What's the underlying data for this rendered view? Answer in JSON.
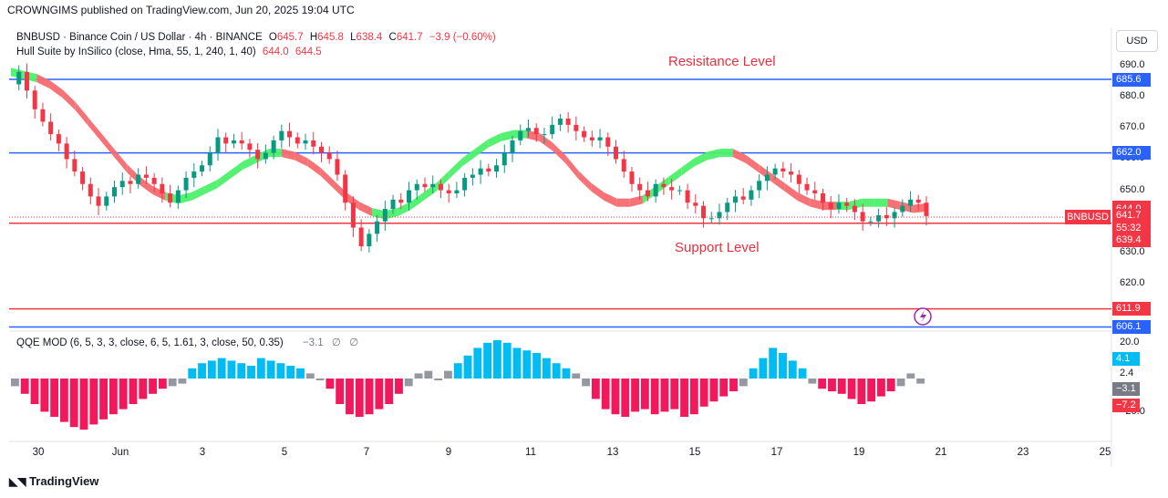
{
  "header": {
    "published": "CROWNGIMS published on TradingView.com, Jun 20, 2025 19:04 UTC"
  },
  "symbol": {
    "title": "BNBUSD · Binance Coin / US Dollar · 4h · BINANCE",
    "o_label": "O",
    "o": "645.7",
    "h_label": "H",
    "h": "645.8",
    "l_label": "L",
    "l": "638.4",
    "c_label": "C",
    "c": "641.7",
    "change": "−3.9 (−0.60%)"
  },
  "hull": {
    "label": "Hull Suite by InSilico (close, Hma, 55, 1, 240, 1, 40)",
    "v1": "644.0",
    "v2": "644.5"
  },
  "qqe": {
    "label": "QQE MOD (6, 5, 3, 3, close, 6, 5, 1.61, 3, close, 50, 0.35)",
    "v1": "−3.1",
    "v2": "∅",
    "v3": "∅"
  },
  "currency_button": "USD",
  "annotations": {
    "resistance": "Resisitance Level",
    "support": "Support Level"
  },
  "symbol_tag": "BNBUSD",
  "price_ticks": [
    "690.0",
    "680.0",
    "670.0",
    "660.0",
    "650.0",
    "640.0",
    "630.0",
    "620.0"
  ],
  "qqe_ticks": [
    "20.0",
    "2.4",
    "−20.0"
  ],
  "price_tags": [
    {
      "label": "685.6",
      "value": 685.6,
      "color": "#2962ff"
    },
    {
      "label": "662.0",
      "value": 662.0,
      "color": "#2962ff"
    },
    {
      "label": "644.5",
      "value": 644.5,
      "color": "#f23645"
    },
    {
      "label": "644.0",
      "value": 644.0,
      "color": "#f23645"
    },
    {
      "label": "641.7",
      "value": 641.7,
      "color": "#f23645"
    },
    {
      "label": "55:32",
      "value": 637.6,
      "color": "#f23645"
    },
    {
      "label": "639.4",
      "value": 634.0,
      "color": "#f23645"
    },
    {
      "label": "611.9",
      "value": 611.9,
      "color": "#f23645"
    },
    {
      "label": "606.1",
      "value": 606.1,
      "color": "#2962ff"
    }
  ],
  "qqe_tags": [
    {
      "label": "4.1",
      "value": 4.1,
      "color": "#00bcf2"
    },
    {
      "label": "−3.1",
      "value": -3.1,
      "color": "#787b86"
    },
    {
      "label": "−7.2",
      "value": -7.2,
      "color": "#f23645"
    }
  ],
  "x_labels": [
    "30",
    "Jun",
    "3",
    "5",
    "7",
    "9",
    "11",
    "13",
    "15",
    "17",
    "19",
    "21",
    "23",
    "25"
  ],
  "chart_data": {
    "type": "candlestick",
    "interval": "4h",
    "ylim": [
      603,
      695
    ],
    "horizontal_lines": [
      {
        "price": 685.6,
        "color": "#2962ff"
      },
      {
        "price": 662.0,
        "color": "#2962ff"
      },
      {
        "price": 639.4,
        "color": "#f23645"
      },
      {
        "price": 611.9,
        "color": "#f23645"
      },
      {
        "price": 606.1,
        "color": "#2962ff"
      }
    ],
    "close_path": [
      684,
      688,
      682,
      676,
      672,
      668,
      665,
      660,
      656,
      652,
      648,
      645,
      648,
      651,
      653,
      652,
      655,
      654,
      652,
      649,
      646,
      650,
      654,
      656,
      658,
      662,
      667,
      665,
      666,
      665,
      663,
      660,
      662,
      666,
      669,
      667,
      665,
      666,
      664,
      662,
      660,
      655,
      646,
      638,
      632,
      636,
      640,
      644,
      647,
      646,
      650,
      652,
      651,
      652,
      650,
      649,
      650,
      654,
      655,
      657,
      656,
      658,
      662,
      666,
      669,
      670,
      668,
      668,
      671,
      673,
      671,
      669,
      667,
      666,
      667,
      664,
      660,
      656,
      652,
      650,
      648,
      652,
      651,
      650,
      650,
      646,
      645,
      641,
      641,
      643,
      646,
      648,
      647,
      650,
      653,
      655,
      657,
      656,
      655,
      652,
      650,
      649,
      646,
      644,
      646,
      645,
      643,
      640,
      640,
      642,
      641,
      643,
      645,
      647,
      646,
      641.7
    ],
    "hull_path": [
      688,
      687,
      686,
      684,
      681,
      677,
      672,
      667,
      662,
      657,
      653,
      650,
      648,
      647,
      648,
      650,
      652,
      655,
      658,
      660,
      662,
      662,
      661,
      659,
      656,
      652,
      648,
      645,
      643,
      642,
      643,
      645,
      648,
      651,
      655,
      659,
      662,
      665,
      667,
      668,
      668,
      667,
      664,
      660,
      655,
      651,
      648,
      646,
      646,
      647,
      650,
      653,
      656,
      659,
      661,
      662,
      662,
      660,
      657,
      654,
      651,
      648,
      646,
      645,
      645,
      645,
      646,
      646,
      646,
      645,
      644,
      644.5
    ],
    "hull_bullish_segments": [
      [
        0,
        2
      ],
      [
        12,
        21
      ],
      [
        28,
        40
      ],
      [
        49,
        56
      ],
      [
        64,
        68
      ]
    ],
    "qqe_bars": [
      -3,
      -6,
      -10,
      -13,
      -15,
      -17,
      -19,
      -20,
      -18,
      -16,
      -14,
      -12,
      -10,
      -8,
      -6,
      -4,
      -3,
      -2,
      4,
      6,
      7,
      8,
      7,
      6,
      5,
      8,
      7,
      6,
      5,
      4,
      2,
      0,
      -4,
      -10,
      -14,
      -15,
      -14,
      -12,
      -10,
      -6,
      -3,
      2,
      3,
      0,
      3,
      6,
      9,
      12,
      14,
      15,
      14,
      12,
      11,
      10,
      8,
      6,
      4,
      2,
      -3,
      -8,
      -12,
      -14,
      -15,
      -13,
      -12,
      -14,
      -13,
      -12,
      -15,
      -14,
      -11,
      -9,
      -7,
      -5,
      -3,
      4,
      8,
      12,
      10,
      7,
      4,
      -2,
      -4,
      -5,
      -6,
      -8,
      -10,
      -9,
      -7,
      -5,
      -3,
      2,
      -2
    ]
  }
}
